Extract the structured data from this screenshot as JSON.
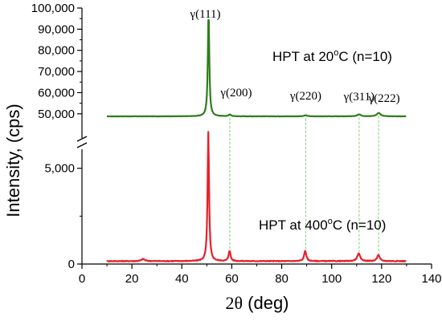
{
  "chart_data": {
    "type": "line",
    "xlabel_sym": "2θ",
    "xlabel_unit": " (deg)",
    "ylabel": "Intensity, (cps)",
    "xlim": [
      0,
      140
    ],
    "x_ticks": [
      0,
      20,
      40,
      60,
      80,
      100,
      120,
      140
    ],
    "y_break": true,
    "upper_panel": {
      "ylim": [
        45000,
        100000
      ],
      "y_ticks": [
        50000,
        60000,
        70000,
        80000,
        90000,
        100000
      ],
      "y_tick_labels": [
        "50,000",
        "60,000",
        "70,000",
        "80,000",
        "90,000",
        "100,000"
      ]
    },
    "lower_panel": {
      "ylim": [
        0,
        7000
      ],
      "y_ticks": [
        0,
        5000
      ],
      "y_tick_labels": [
        "0",
        "5,000"
      ]
    },
    "series": [
      {
        "name_main": "HPT at 20",
        "name_sup": "o",
        "name_tail": "C (n=10)",
        "panel": "upper",
        "color": "#2e7d1c",
        "baseline": 48800,
        "peaks": [
          {
            "x": 50.7,
            "y": 98000,
            "w": 0.35
          },
          {
            "x": 59.2,
            "y": 49600,
            "w": 0.6
          },
          {
            "x": 89.6,
            "y": 49300,
            "w": 0.7
          },
          {
            "x": 111.0,
            "y": 49700,
            "w": 0.9
          },
          {
            "x": 118.8,
            "y": 50400,
            "w": 0.9
          }
        ]
      },
      {
        "name_main": "HPT at 400",
        "name_sup": "o",
        "name_tail": "C (n=10)",
        "panel": "lower",
        "color": "#e8202a",
        "baseline": 150,
        "peaks": [
          {
            "x": 24.5,
            "y": 260,
            "w": 0.8
          },
          {
            "x": 50.6,
            "y": 6900,
            "w": 0.35
          },
          {
            "x": 59.1,
            "y": 700,
            "w": 0.45
          },
          {
            "x": 89.4,
            "y": 700,
            "w": 0.5
          },
          {
            "x": 110.8,
            "y": 550,
            "w": 0.7
          },
          {
            "x": 118.7,
            "y": 480,
            "w": 0.6
          }
        ]
      }
    ],
    "x_range": [
      10,
      130
    ],
    "peak_labels": [
      {
        "text": "γ(111)",
        "x": 50.7
      },
      {
        "text": "γ(200)",
        "x": 59.2
      },
      {
        "text": "γ(220)",
        "x": 89.6
      },
      {
        "text": "γ(311)",
        "x": 111.0
      },
      {
        "text": "γ(222)",
        "x": 118.8
      }
    ],
    "guide_color": "#7ccc6e"
  }
}
